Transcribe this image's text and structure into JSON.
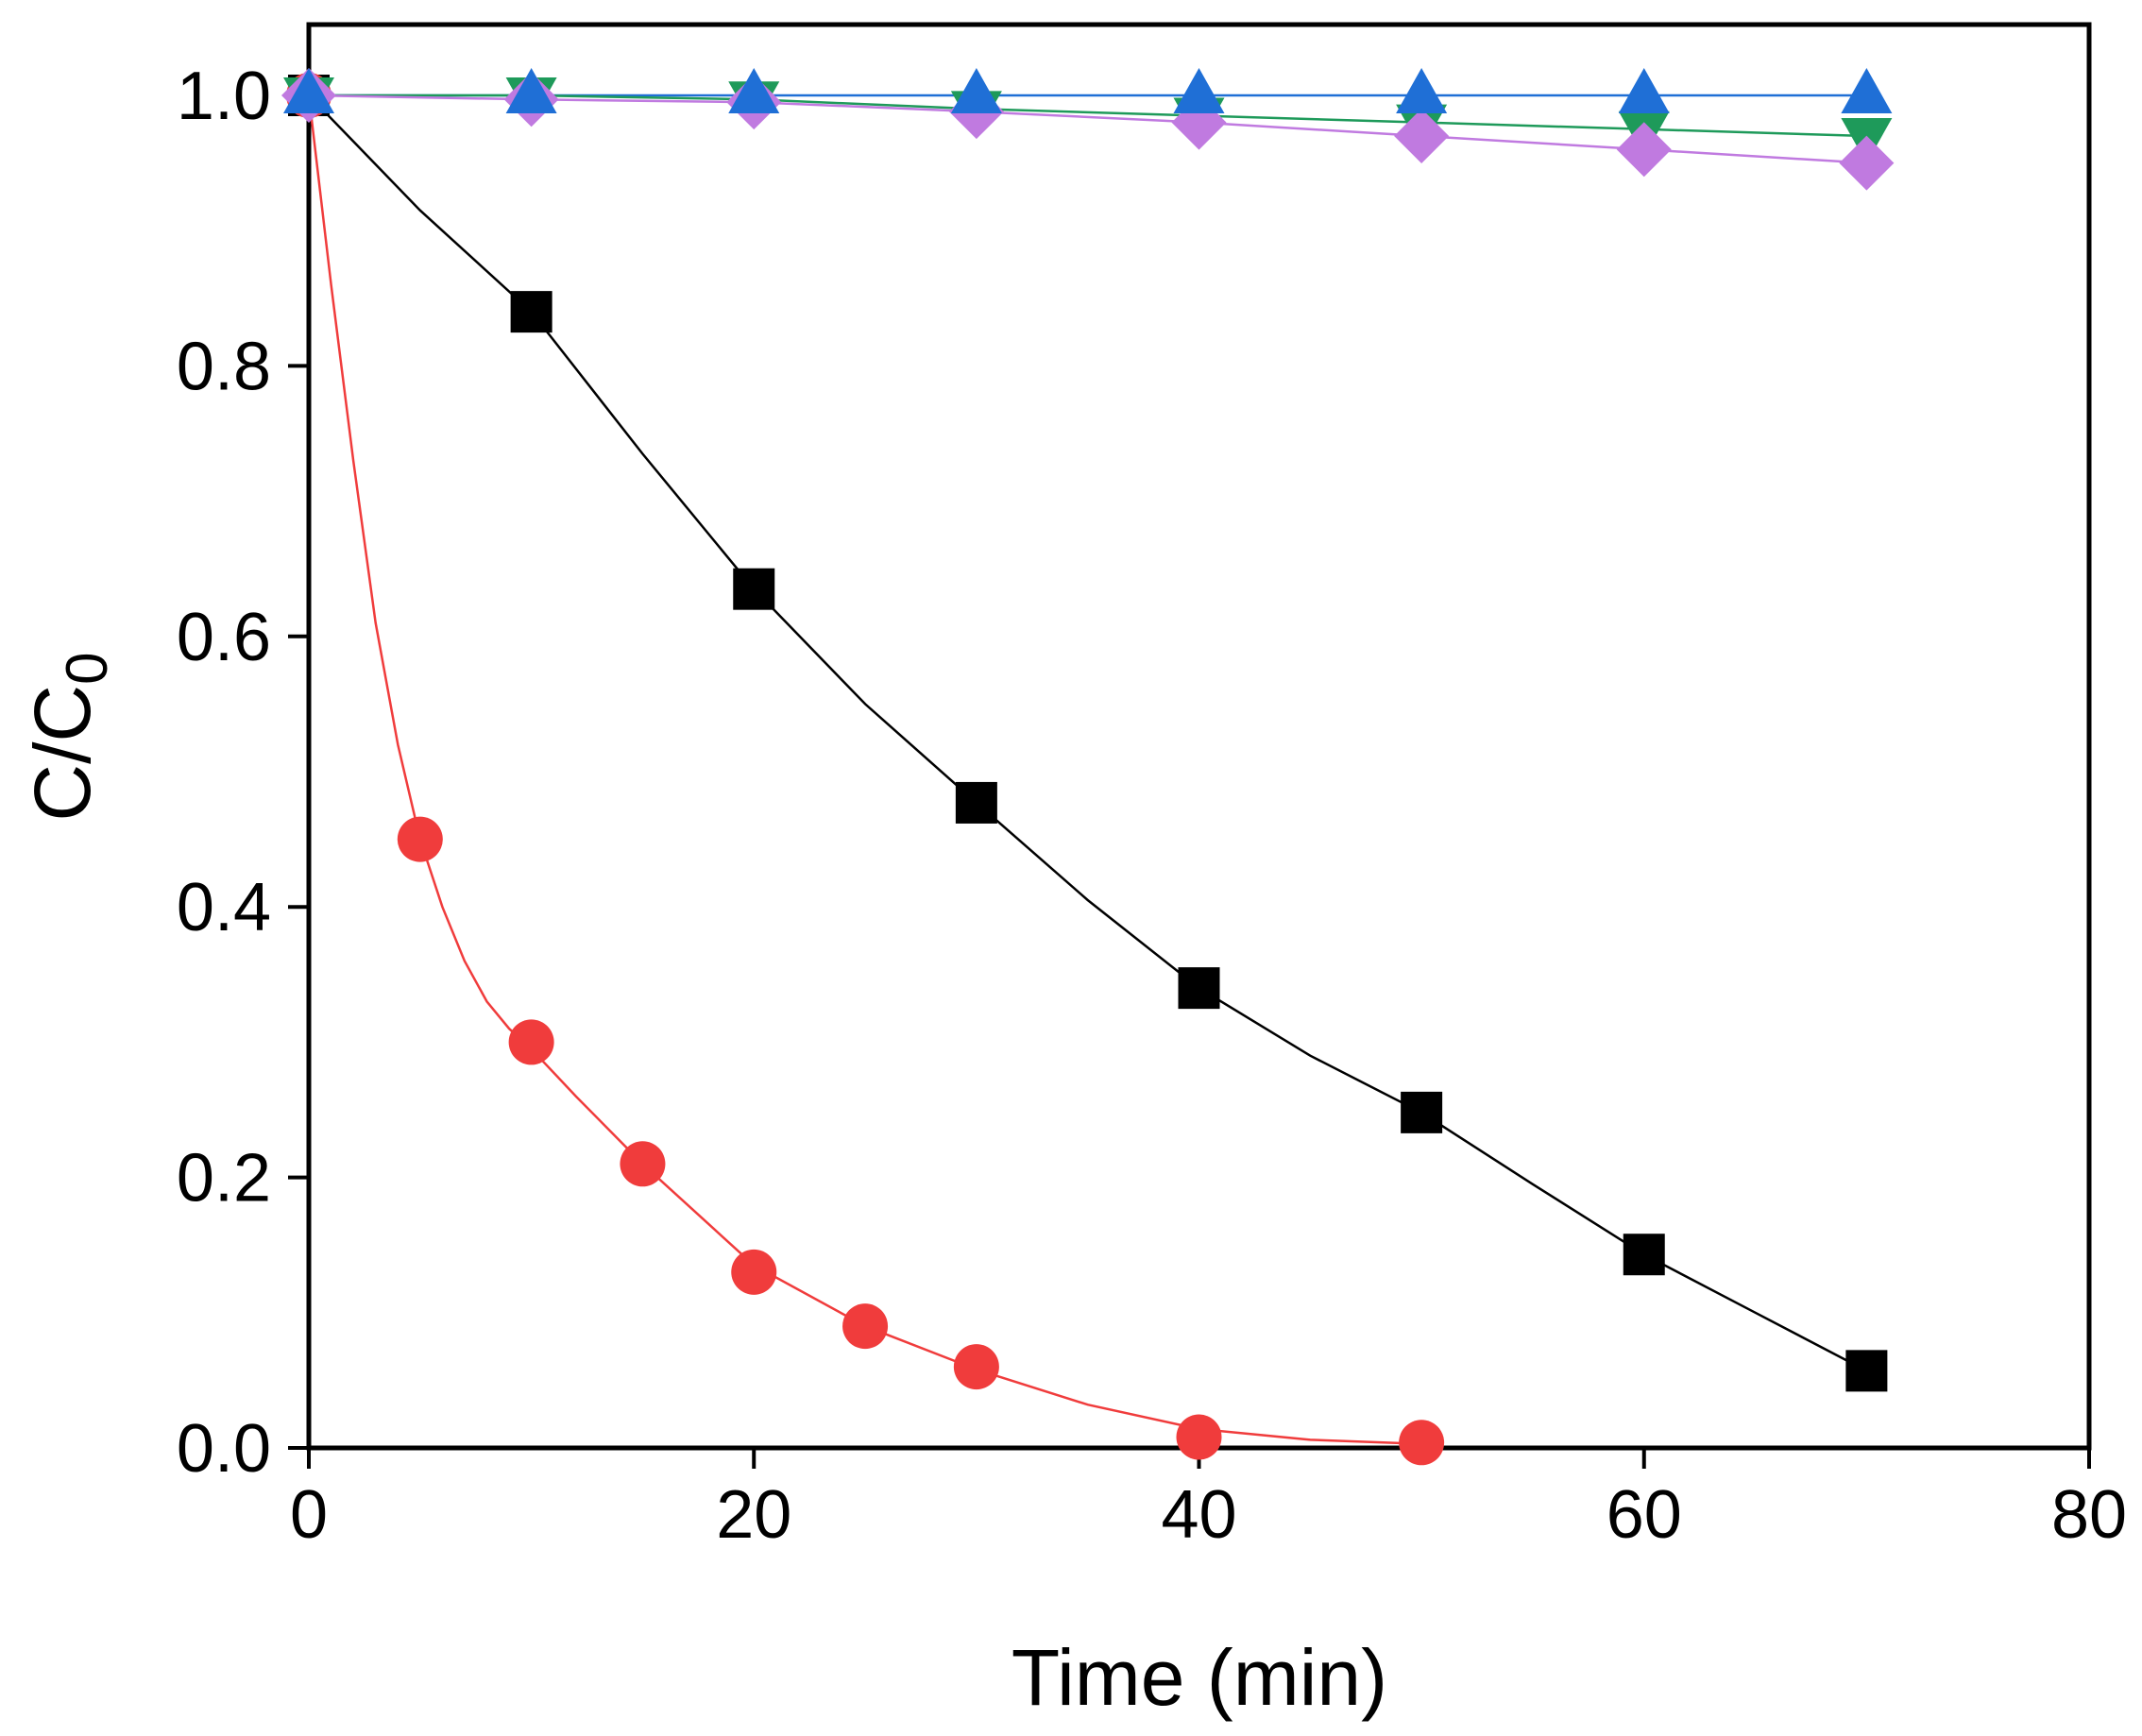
{
  "chart_data": {
    "type": "line",
    "title": "",
    "xlabel": "Time (min)",
    "ylabel": {
      "main": "C/C",
      "subscript": "0"
    },
    "xlim": [
      0,
      80
    ],
    "ylim": [
      0,
      1.0
    ],
    "xticks": [
      0,
      20,
      40,
      60,
      80
    ],
    "yticks": [
      0.0,
      0.2,
      0.4,
      0.6,
      0.8,
      1.0
    ],
    "xtick_labels": [
      "0",
      "20",
      "40",
      "60",
      "80"
    ],
    "ytick_labels": [
      "0.0",
      "0.2",
      "0.4",
      "0.6",
      "0.8",
      "1.0"
    ],
    "grid": false,
    "legend": "none",
    "series": [
      {
        "name": "series-square",
        "marker": "square",
        "color": "#000000",
        "x": [
          0,
          10,
          20,
          30,
          40,
          50,
          60,
          70
        ],
        "y": [
          1.0,
          0.84,
          0.635,
          0.477,
          0.34,
          0.248,
          0.143,
          0.057
        ],
        "fit": [
          [
            0,
            1.0
          ],
          [
            5,
            0.915
          ],
          [
            10,
            0.84
          ],
          [
            15,
            0.735
          ],
          [
            20,
            0.635
          ],
          [
            25,
            0.55
          ],
          [
            30,
            0.477
          ],
          [
            35,
            0.405
          ],
          [
            40,
            0.34
          ],
          [
            45,
            0.29
          ],
          [
            50,
            0.248
          ],
          [
            55,
            0.195
          ],
          [
            60,
            0.143
          ],
          [
            65,
            0.1
          ],
          [
            70,
            0.057
          ]
        ]
      },
      {
        "name": "series-circle",
        "marker": "circle",
        "color": "#f03c3c",
        "x": [
          0,
          5,
          10,
          15,
          20,
          25,
          30,
          40,
          50
        ],
        "y": [
          1.0,
          0.45,
          0.3,
          0.21,
          0.13,
          0.09,
          0.06,
          0.008,
          0.004
        ],
        "fit": [
          [
            0,
            1.0
          ],
          [
            1,
            0.86
          ],
          [
            2,
            0.73
          ],
          [
            3,
            0.61
          ],
          [
            4,
            0.52
          ],
          [
            5,
            0.45
          ],
          [
            6,
            0.4
          ],
          [
            7,
            0.36
          ],
          [
            8,
            0.33
          ],
          [
            9,
            0.31
          ],
          [
            10,
            0.295
          ],
          [
            12,
            0.26
          ],
          [
            15,
            0.21
          ],
          [
            18,
            0.165
          ],
          [
            20,
            0.135
          ],
          [
            25,
            0.09
          ],
          [
            30,
            0.058
          ],
          [
            35,
            0.032
          ],
          [
            40,
            0.014
          ],
          [
            45,
            0.006
          ],
          [
            50,
            0.003
          ]
        ]
      },
      {
        "name": "series-triangle-up",
        "marker": "triangle-up",
        "color": "#1f6fd6",
        "x": [
          0,
          10,
          20,
          30,
          40,
          50,
          60,
          70
        ],
        "y": [
          1.0,
          1.0,
          1.0,
          1.0,
          1.0,
          1.0,
          1.0,
          1.0
        ],
        "fit": [
          [
            0,
            1.0
          ],
          [
            70,
            1.0
          ]
        ]
      },
      {
        "name": "series-triangle-down",
        "marker": "triangle-down",
        "color": "#1e9a5a",
        "x": [
          0,
          10,
          20,
          30,
          40,
          50,
          60,
          70
        ],
        "y": [
          1.0,
          1.0,
          0.997,
          0.99,
          0.985,
          0.98,
          0.975,
          0.97
        ],
        "fit": [
          [
            0,
            1.0
          ],
          [
            10,
            1.0
          ],
          [
            20,
            0.997
          ],
          [
            30,
            0.99
          ],
          [
            40,
            0.985
          ],
          [
            50,
            0.98
          ],
          [
            60,
            0.975
          ],
          [
            70,
            0.97
          ]
        ]
      },
      {
        "name": "series-diamond",
        "marker": "diamond",
        "color": "#c07ae0",
        "x": [
          0,
          10,
          20,
          30,
          40,
          50,
          60,
          70
        ],
        "y": [
          1.0,
          0.997,
          0.995,
          0.988,
          0.98,
          0.97,
          0.96,
          0.95
        ],
        "fit": [
          [
            0,
            1.0
          ],
          [
            10,
            0.997
          ],
          [
            20,
            0.995
          ],
          [
            30,
            0.988
          ],
          [
            40,
            0.98
          ],
          [
            50,
            0.97
          ],
          [
            60,
            0.96
          ],
          [
            70,
            0.95
          ]
        ]
      }
    ]
  }
}
